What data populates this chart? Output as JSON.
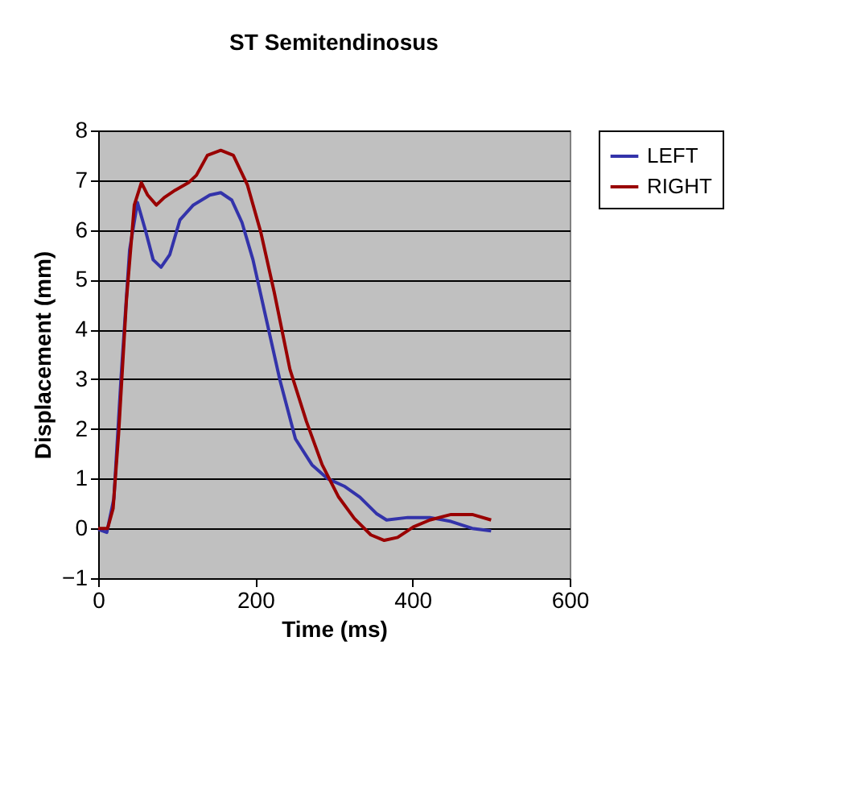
{
  "chart_data": {
    "type": "line",
    "title": "ST Semitendinosus",
    "xlabel": "Time (ms)",
    "ylabel": "Displacement (mm)",
    "xlim": [
      0,
      600
    ],
    "xticks": [
      0,
      200,
      400,
      600
    ],
    "ylim": [
      -1,
      8
    ],
    "yticks": [
      -1,
      0,
      1,
      2,
      3,
      4,
      5,
      6,
      7,
      8
    ],
    "grid": "y",
    "legend": "right",
    "marker": "none",
    "line_style": "solid",
    "series": [
      {
        "name": "LEFT",
        "color": "#3333aa",
        "x": [
          0,
          11,
          20,
          29,
          40,
          50,
          60,
          70,
          80,
          91,
          104,
          121,
          142,
          156,
          170,
          183,
          197,
          214,
          231,
          251,
          272,
          292,
          313,
          333,
          354,
          367,
          394,
          422,
          449,
          476,
          500
        ],
        "values": [
          -0.02,
          -0.08,
          0.6,
          3.0,
          5.6,
          6.55,
          6.0,
          5.4,
          5.25,
          5.5,
          6.2,
          6.5,
          6.7,
          6.75,
          6.6,
          6.15,
          5.4,
          4.2,
          3.0,
          1.8,
          1.28,
          1.0,
          0.85,
          0.63,
          0.3,
          0.17,
          0.22,
          0.22,
          0.14,
          0,
          -0.05
        ]
      },
      {
        "name": "RIGHT",
        "color": "#990000",
        "x": [
          0,
          12,
          19,
          26,
          36,
          46,
          55,
          63,
          74,
          84,
          98,
          115,
          125,
          139,
          156,
          172,
          190,
          207,
          224,
          244,
          265,
          285,
          306,
          326,
          347,
          364,
          381,
          401,
          422,
          449,
          476,
          500
        ],
        "values": [
          0,
          0,
          0.4,
          1.9,
          4.6,
          6.5,
          6.95,
          6.7,
          6.5,
          6.65,
          6.8,
          6.95,
          7.1,
          7.5,
          7.6,
          7.5,
          6.9,
          5.95,
          4.75,
          3.2,
          2.15,
          1.28,
          0.63,
          0.2,
          -0.13,
          -0.24,
          -0.18,
          0.03,
          0.17,
          0.28,
          0.28,
          0.17
        ]
      }
    ]
  }
}
